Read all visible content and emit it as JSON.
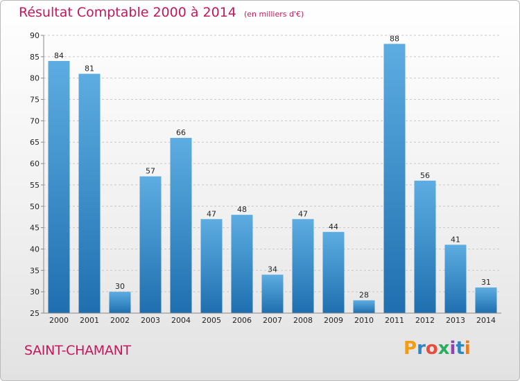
{
  "title": "Résultat Comptable 2000 à 2014",
  "subtitle": "(en milliers d'€)",
  "commune": "SAINT-CHAMANT",
  "logo": {
    "letters": [
      "P",
      "r",
      "o",
      "x",
      "i",
      "t",
      "i"
    ],
    "colors": [
      "#f39c12",
      "#2e86c1",
      "#e74c3c",
      "#27ae60",
      "#8e44ad",
      "#2e86c1",
      "#e67e22"
    ]
  },
  "colors": {
    "bar_top": "#5dade2",
    "bar_bottom": "#1f6fb0",
    "accent": "#c2185b"
  },
  "chart_data": {
    "type": "bar",
    "categories": [
      "2000",
      "2001",
      "2002",
      "2003",
      "2004",
      "2005",
      "2006",
      "2007",
      "2008",
      "2009",
      "2010",
      "2011",
      "2012",
      "2013",
      "2014"
    ],
    "values": [
      84,
      81,
      30,
      57,
      66,
      47,
      48,
      34,
      47,
      44,
      28,
      88,
      56,
      41,
      31
    ],
    "ylim": [
      25,
      90
    ],
    "yticks": [
      25,
      30,
      35,
      40,
      45,
      50,
      55,
      60,
      65,
      70,
      75,
      80,
      85,
      90
    ],
    "grid": "horizontal-dashed",
    "xlabel": "",
    "ylabel": ""
  }
}
